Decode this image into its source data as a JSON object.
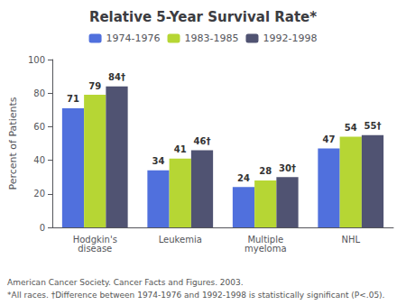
{
  "chart_data": {
    "type": "bar",
    "title": "Relative 5-Year Survival Rate*",
    "ylabel": "Percent of Patients",
    "categories": [
      "Hodgkin's\ndisease",
      "Leukemia",
      "Multiple\nmyeloma",
      "NHL"
    ],
    "series": [
      {
        "name": "1974-1976",
        "values": [
          71,
          34,
          24,
          47
        ],
        "value_labels": [
          "71",
          "34",
          "24",
          "47"
        ]
      },
      {
        "name": "1983-1985",
        "values": [
          79,
          41,
          28,
          54
        ],
        "value_labels": [
          "79",
          "41",
          "28",
          "54"
        ]
      },
      {
        "name": "1992-1998",
        "values": [
          84,
          46,
          30,
          55
        ],
        "value_labels": [
          "84†",
          "46†",
          "30†",
          "55†"
        ]
      }
    ],
    "ylim": [
      0,
      100
    ],
    "yticks": [
      0,
      20,
      40,
      60,
      80,
      100
    ],
    "grid": false,
    "legend": "top",
    "data_labels": true,
    "annotations": [
      "*All races. †Difference between 1974-1976 and 1992-1998 is statistically significant (P<.05).",
      "American Cancer Society. Cancer Facts and Figures. 2003."
    ]
  }
}
